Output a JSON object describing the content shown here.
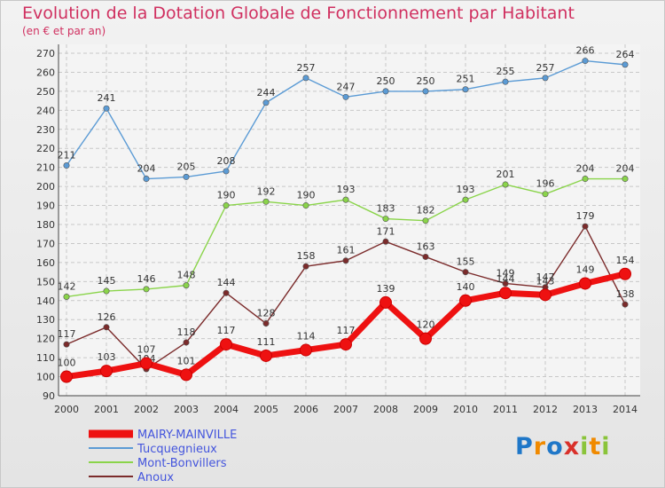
{
  "title": "Evolution de la Dotation Globale de Fonctionnement par Habitant",
  "subtitle": "(en € et par an)",
  "logo_text": "Proxiti",
  "chart_data": {
    "type": "line",
    "title": "Evolution de la Dotation Globale de Fonctionnement par Habitant",
    "subtitle": "(en € et par an)",
    "x": [
      2000,
      2001,
      2002,
      2003,
      2004,
      2005,
      2006,
      2007,
      2008,
      2009,
      2010,
      2011,
      2012,
      2013,
      2014
    ],
    "ylim": [
      90,
      270
    ],
    "ytick_step": 10,
    "grid": true,
    "legend_position": "bottom-left",
    "series": [
      {
        "name": "MAIRY-MAINVILLE",
        "color": "#ee1111",
        "values": [
          100,
          103,
          107,
          101,
          117,
          111,
          114,
          117,
          139,
          120,
          140,
          144,
          143,
          149,
          154
        ]
      },
      {
        "name": "Tucquegnieux",
        "color": "#5b9bd5",
        "values": [
          211,
          241,
          204,
          205,
          208,
          244,
          257,
          247,
          250,
          250,
          251,
          255,
          257,
          266,
          264
        ]
      },
      {
        "name": "Mont-Bonvillers",
        "color": "#8ad44a",
        "values": [
          142,
          145,
          146,
          148,
          190,
          192,
          190,
          193,
          183,
          182,
          193,
          201,
          196,
          204,
          204
        ]
      },
      {
        "name": "Anoux",
        "color": "#7b2b2b",
        "values": [
          117,
          126,
          104,
          118,
          144,
          128,
          158,
          161,
          171,
          163,
          155,
          149,
          147,
          179,
          138
        ]
      }
    ]
  }
}
